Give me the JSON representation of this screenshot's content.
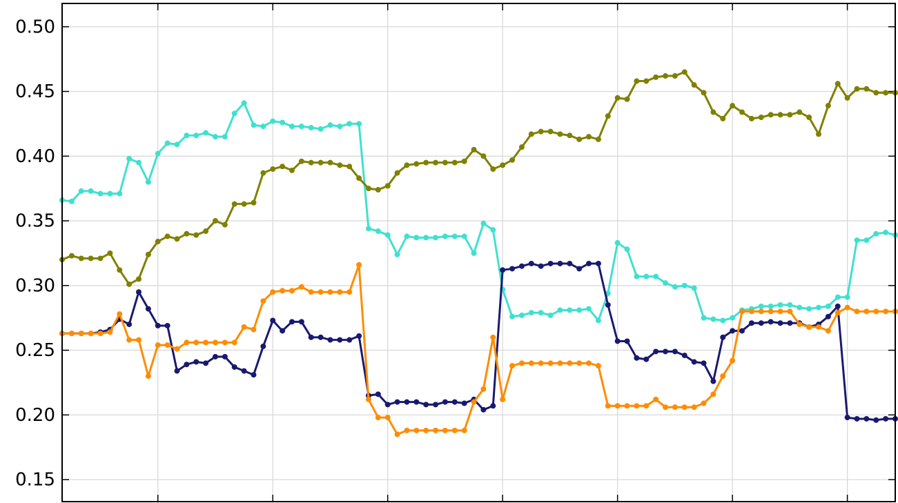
{
  "chart_data": {
    "type": "line",
    "x": [
      0,
      1,
      2,
      3,
      4,
      5,
      6,
      7,
      8,
      9,
      10,
      11,
      12,
      13,
      14,
      15,
      16,
      17,
      18,
      19,
      20,
      21,
      22,
      23,
      24,
      25,
      26,
      27,
      28,
      29,
      30,
      31,
      32,
      33,
      34,
      35,
      36,
      37,
      38,
      39,
      40,
      41,
      42,
      43,
      44,
      45,
      46,
      47,
      48,
      49,
      50,
      51,
      52,
      53,
      54,
      55,
      56,
      57,
      58,
      59,
      60,
      61,
      62,
      63,
      64,
      65,
      66,
      67,
      68,
      69,
      70,
      71,
      72,
      73,
      74,
      75,
      76,
      77,
      78,
      79,
      80,
      81,
      82,
      83,
      84,
      85,
      86,
      87
    ],
    "xlim": [
      0,
      87
    ],
    "xticks": [
      10,
      22,
      34,
      46,
      58,
      70,
      82
    ],
    "ylim": [
      0.133,
      0.518
    ],
    "yticks": [
      0.15,
      {
        "value": 0.2,
        "label": "0.20"
      },
      0.25,
      {
        "value": 0.3,
        "label": "0.30"
      },
      0.35,
      {
        "value": 0.4,
        "label": "0.40"
      },
      0.45,
      {
        "value": 0.5,
        "label": "0.50"
      }
    ],
    "grid": true,
    "series": [
      {
        "color": "#40e0d0",
        "values": [
          0.366,
          0.365,
          0.373,
          0.373,
          0.371,
          0.371,
          0.371,
          0.398,
          0.395,
          0.38,
          0.402,
          0.41,
          0.409,
          0.416,
          0.416,
          0.418,
          0.415,
          0.415,
          0.433,
          0.441,
          0.424,
          0.423,
          0.427,
          0.426,
          0.423,
          0.423,
          0.422,
          0.421,
          0.424,
          0.423,
          0.425,
          0.425,
          0.344,
          0.342,
          0.339,
          0.324,
          0.338,
          0.337,
          0.337,
          0.337,
          0.338,
          0.338,
          0.338,
          0.325,
          0.348,
          0.343,
          0.297,
          0.276,
          0.277,
          0.279,
          0.279,
          0.277,
          0.281,
          0.281,
          0.281,
          0.282,
          0.273,
          0.294,
          0.333,
          0.328,
          0.307,
          0.307,
          0.307,
          0.302,
          0.299,
          0.3,
          0.298,
          0.275,
          0.274,
          0.273,
          0.275,
          0.281,
          0.282,
          0.284,
          0.284,
          0.285,
          0.285,
          0.283,
          0.282,
          0.283,
          0.284,
          0.291,
          0.291,
          0.335,
          0.335,
          0.34,
          0.341,
          0.339
        ]
      },
      {
        "color": "#808000",
        "values": [
          0.32,
          0.323,
          0.321,
          0.321,
          0.321,
          0.325,
          0.312,
          0.301,
          0.305,
          0.324,
          0.334,
          0.338,
          0.336,
          0.34,
          0.339,
          0.342,
          0.35,
          0.347,
          0.363,
          0.363,
          0.364,
          0.387,
          0.39,
          0.392,
          0.389,
          0.396,
          0.395,
          0.395,
          0.395,
          0.393,
          0.392,
          0.383,
          0.375,
          0.374,
          0.377,
          0.387,
          0.393,
          0.394,
          0.395,
          0.395,
          0.395,
          0.395,
          0.396,
          0.405,
          0.4,
          0.39,
          0.393,
          0.397,
          0.407,
          0.417,
          0.419,
          0.419,
          0.417,
          0.416,
          0.413,
          0.415,
          0.413,
          0.431,
          0.445,
          0.444,
          0.458,
          0.458,
          0.461,
          0.462,
          0.462,
          0.465,
          0.455,
          0.449,
          0.434,
          0.429,
          0.439,
          0.434,
          0.429,
          0.43,
          0.432,
          0.432,
          0.432,
          0.434,
          0.43,
          0.417,
          0.439,
          0.456,
          0.445,
          0.452,
          0.452,
          0.449,
          0.449,
          0.449
        ]
      },
      {
        "color": "#191970",
        "values": [
          0.263,
          0.263,
          0.263,
          0.263,
          0.264,
          0.266,
          0.274,
          0.27,
          0.295,
          0.282,
          0.269,
          0.269,
          0.234,
          0.239,
          0.241,
          0.24,
          0.245,
          0.245,
          0.237,
          0.234,
          0.231,
          0.253,
          0.273,
          0.265,
          0.272,
          0.272,
          0.26,
          0.26,
          0.258,
          0.258,
          0.258,
          0.261,
          0.215,
          0.216,
          0.208,
          0.21,
          0.21,
          0.21,
          0.208,
          0.208,
          0.21,
          0.21,
          0.209,
          0.212,
          0.204,
          0.207,
          0.312,
          0.313,
          0.315,
          0.317,
          0.315,
          0.317,
          0.317,
          0.317,
          0.313,
          0.317,
          0.317,
          0.285,
          0.257,
          0.257,
          0.244,
          0.243,
          0.249,
          0.249,
          0.249,
          0.246,
          0.241,
          0.24,
          0.226,
          0.26,
          0.265,
          0.265,
          0.271,
          0.271,
          0.272,
          0.271,
          0.271,
          0.271,
          0.268,
          0.27,
          0.276,
          0.284,
          0.198,
          0.197,
          0.197,
          0.196,
          0.197,
          0.197
        ]
      },
      {
        "color": "#ff8c00",
        "values": [
          0.263,
          0.263,
          0.263,
          0.263,
          0.263,
          0.264,
          0.278,
          0.258,
          0.258,
          0.23,
          0.254,
          0.254,
          0.251,
          0.256,
          0.256,
          0.256,
          0.256,
          0.256,
          0.256,
          0.268,
          0.266,
          0.288,
          0.295,
          0.296,
          0.296,
          0.299,
          0.295,
          0.295,
          0.295,
          0.295,
          0.295,
          0.316,
          0.212,
          0.198,
          0.198,
          0.185,
          0.188,
          0.188,
          0.188,
          0.188,
          0.188,
          0.188,
          0.188,
          0.21,
          0.22,
          0.26,
          0.212,
          0.238,
          0.24,
          0.24,
          0.24,
          0.24,
          0.24,
          0.24,
          0.24,
          0.24,
          0.238,
          0.207,
          0.207,
          0.207,
          0.207,
          0.207,
          0.212,
          0.206,
          0.206,
          0.206,
          0.206,
          0.209,
          0.216,
          0.23,
          0.242,
          0.28,
          0.28,
          0.28,
          0.28,
          0.28,
          0.28,
          0.27,
          0.268,
          0.268,
          0.265,
          0.279,
          0.283,
          0.28,
          0.28,
          0.28,
          0.28,
          0.28
        ]
      }
    ]
  }
}
